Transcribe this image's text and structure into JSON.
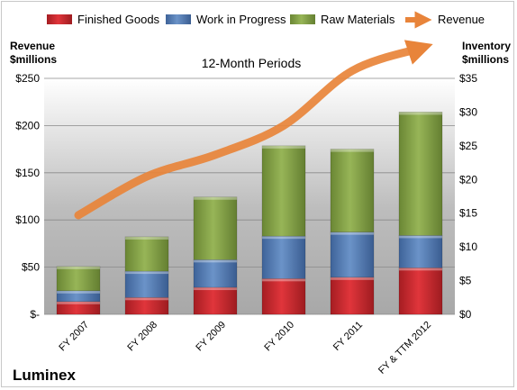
{
  "chart_data": {
    "type": "bar",
    "subtitle": "12-Month Periods",
    "company": "Luminex",
    "left_axis": {
      "title_line1": "Revenue",
      "title_line2": "$millions",
      "ylim": [
        0,
        250
      ],
      "ticks": [
        0,
        50,
        100,
        150,
        200,
        250
      ],
      "tick_labels": [
        "$-",
        "$50",
        "$100",
        "$150",
        "$200",
        "$250"
      ]
    },
    "right_axis": {
      "title_line1": "Inventory",
      "title_line2": "$millions",
      "ylim": [
        0,
        35
      ],
      "ticks": [
        0,
        5,
        10,
        15,
        20,
        25,
        30,
        35
      ],
      "tick_labels": [
        "$0",
        "$5",
        "$10",
        "$15",
        "$20",
        "$25",
        "$30",
        "$35"
      ]
    },
    "categories": [
      "FY 2007",
      "FY 2008",
      "FY 2009",
      "FY 2010",
      "FY 2011",
      "FY & TTM 2012"
    ],
    "series": [
      {
        "name": "Finished Goods",
        "kind": "stacked-bar",
        "axis": "right",
        "color": "#c0282e",
        "values": [
          1.9,
          2.5,
          4.0,
          5.3,
          5.5,
          6.9
        ]
      },
      {
        "name": "Work in Progress",
        "kind": "stacked-bar",
        "axis": "right",
        "color": "#4f79b1",
        "values": [
          1.6,
          3.9,
          4.1,
          6.3,
          6.7,
          4.8
        ]
      },
      {
        "name": "Raw Materials",
        "kind": "stacked-bar",
        "axis": "right",
        "color": "#7f9e3f",
        "values": [
          3.6,
          5.1,
          9.3,
          13.4,
          12.3,
          18.3
        ]
      },
      {
        "name": "Revenue",
        "kind": "arrow-line",
        "axis": "left",
        "color": "#e8843a",
        "values": [
          105,
          146,
          169,
          200,
          258,
          282
        ]
      }
    ],
    "legend_position": "top"
  }
}
